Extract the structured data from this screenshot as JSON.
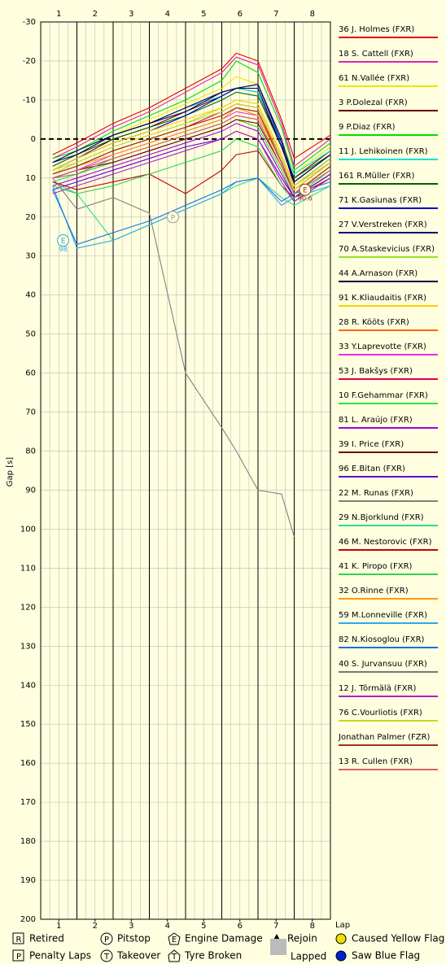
{
  "chart_data": {
    "type": "line",
    "y_label": "Gap [s]",
    "x_label": "Lap",
    "background": "#ffffe0",
    "xlim": [
      0,
      8
    ],
    "xticks": [
      {
        "value": 0.5,
        "label": "1"
      },
      {
        "value": 1.5,
        "label": "2"
      },
      {
        "value": 2.5,
        "label": "3"
      },
      {
        "value": 3.5,
        "label": "4"
      },
      {
        "value": 4.5,
        "label": "5"
      },
      {
        "value": 5.5,
        "label": "6"
      },
      {
        "value": 6.5,
        "label": "7"
      },
      {
        "value": 7.5,
        "label": "8"
      }
    ],
    "ylim": [
      -30,
      200
    ],
    "y_inverted": true,
    "yticks": [
      -30,
      -20,
      -10,
      0,
      10,
      20,
      30,
      40,
      50,
      60,
      70,
      80,
      90,
      100,
      110,
      120,
      130,
      140,
      150,
      160,
      170,
      180,
      190,
      200
    ],
    "grid": true,
    "x": [
      0.33,
      1,
      2,
      3,
      4,
      5,
      5.4,
      6,
      6.65,
      7,
      8
    ],
    "series": [
      {
        "name": "36 J. Holmes (FXR)",
        "color": "#e00000",
        "values": [
          4,
          1,
          -4,
          -8,
          -13,
          -18,
          -22,
          -20,
          -5,
          5,
          -1
        ]
      },
      {
        "name": "18 S. Cattell (FXR)",
        "color": "#e020b0",
        "values": [
          5,
          2,
          -3,
          -7,
          -12,
          -17,
          -21,
          -19,
          -4,
          7,
          0
        ]
      },
      {
        "name": "61 N.Vallée (FXR)",
        "color": "#e8e800",
        "values": [
          7,
          4,
          -1,
          -5,
          -9,
          -13,
          -16,
          -14,
          0,
          9,
          2
        ]
      },
      {
        "name": "3 P.Dolezal (FXR)",
        "color": "#600000",
        "values": [
          8,
          5,
          0,
          -3,
          -7,
          -11,
          -13,
          -12,
          2,
          10,
          3
        ]
      },
      {
        "name": "9 P.Diaz (FXR)",
        "color": "#00dd00",
        "values": [
          5,
          3,
          -2,
          -6,
          -10,
          -15,
          -20,
          -17,
          -3,
          8,
          1
        ]
      },
      {
        "name": "11 J. Lehikoinen (FXR)",
        "color": "#00e0e0",
        "values": [
          6,
          4,
          -1,
          -4,
          -8,
          -11,
          -13,
          -12,
          1,
          9,
          3
        ]
      },
      {
        "name": "161 R.Müller (FXR)",
        "color": "#006000",
        "values": [
          7,
          4,
          0,
          -3,
          -6,
          -10,
          -12,
          -11,
          2,
          10,
          4
        ]
      },
      {
        "name": "71 K.Gasiunas (FXR)",
        "color": "#0000cc",
        "values": [
          8,
          5,
          1,
          -2,
          -6,
          -11,
          -13,
          -14,
          1,
          12,
          5
        ]
      },
      {
        "name": "27 V.Verstreken (FXR)",
        "color": "#000070",
        "values": [
          6,
          4,
          -1,
          -4,
          -7,
          -12,
          -13,
          -14,
          0,
          11,
          4
        ]
      },
      {
        "name": "70 A.Staskevicius (FXR)",
        "color": "#99e030",
        "values": [
          9,
          6,
          2,
          -1,
          -4,
          -8,
          -10,
          -9,
          4,
          12,
          5
        ]
      },
      {
        "name": "44 A.Arnason (FXR)",
        "color": "#000040",
        "values": [
          6,
          3,
          -1,
          -4,
          -8,
          -12,
          -13,
          -13,
          2,
          11,
          4
        ]
      },
      {
        "name": "91 K.Kliaudaitis (FXR)",
        "color": "#ffcc00",
        "values": [
          8,
          5,
          1,
          -2,
          -5,
          -8,
          -10,
          -9,
          4,
          12,
          6
        ]
      },
      {
        "name": "28 R. Kööts (FXR)",
        "color": "#ff6600",
        "values": [
          9,
          7,
          3,
          0,
          -3,
          -6,
          -8,
          -7,
          5,
          13,
          6
        ]
      },
      {
        "name": "33 Y.Laprevotte (FXR)",
        "color": "#e030e0",
        "values": [
          10,
          8,
          4,
          1,
          -2,
          -5,
          -7,
          -6,
          6,
          14,
          7
        ]
      },
      {
        "name": "53 J. Bakšys (FXR)",
        "color": "#e00050",
        "values": [
          9,
          7,
          3,
          0,
          -3,
          -7,
          -9,
          -8,
          5,
          13,
          6
        ]
      },
      {
        "name": "10 F.Gehammar (FXR)",
        "color": "#30e030",
        "values": [
          11,
          9,
          6,
          3,
          0,
          -3,
          -5,
          -3,
          8,
          15,
          8
        ]
      },
      {
        "name": "81 L. Araújo (FXR)",
        "color": "#a000e0",
        "values": [
          12,
          10,
          7,
          4,
          1,
          -2,
          -4,
          -2,
          9,
          15,
          9
        ]
      },
      {
        "name": "39 I. Price (FXR)",
        "color": "#700000",
        "values": [
          10,
          8,
          6,
          3,
          0,
          -3,
          -5,
          -4,
          7,
          14,
          7
        ]
      },
      {
        "name": "96 E.Bitan (FXR)",
        "color": "#6000d0",
        "values": [
          13,
          11,
          8,
          5,
          2,
          0,
          -2,
          0,
          10,
          15,
          9
        ]
      },
      {
        "name": "22 M. Runas (FXR)",
        "color": "#808080",
        "values": [
          10,
          18,
          15,
          19,
          60,
          74,
          80,
          90,
          91,
          102,
          null
        ]
      },
      {
        "name": "29 N.Bjorklund (FXR)",
        "color": "#30d890",
        "values": [
          11,
          14,
          26,
          22,
          18,
          14,
          12,
          10,
          15,
          17,
          12
        ]
      },
      {
        "name": "46 M. Nestorovic (FXR)",
        "color": "#c00000",
        "values": [
          11,
          13,
          11,
          9,
          14,
          8,
          4,
          3,
          12,
          15,
          10
        ]
      },
      {
        "name": "41 K. Piropo (FXR)",
        "color": "#30d050",
        "values": [
          12,
          14,
          12,
          9,
          6,
          3,
          0,
          2,
          12,
          16,
          10
        ]
      },
      {
        "name": "32 O.Rinne (FXR)",
        "color": "#ff9900",
        "values": [
          9,
          7,
          4,
          1,
          -2,
          -5,
          -8,
          -6,
          6,
          14,
          7
        ]
      },
      {
        "name": "59 M.Lonneville (FXR)",
        "color": "#30a8e8",
        "values": [
          12,
          28,
          26,
          22,
          18,
          14,
          11,
          10,
          17,
          15,
          12
        ]
      },
      {
        "name": "82 N.Kiosoglou (FXR)",
        "color": "#1070e0",
        "values": [
          13,
          27,
          24,
          21,
          17,
          13,
          11,
          10,
          16,
          14,
          11
        ]
      },
      {
        "name": "40 S. Jurvansuu (FXR)",
        "color": "#777777",
        "values": [
          10,
          9,
          5,
          2,
          -1,
          -4,
          -6,
          -5,
          7,
          14,
          8
        ]
      },
      {
        "name": "12 J. Törmälä (FXR)",
        "color": "#b020c0",
        "values": [
          14,
          12,
          9,
          6,
          3,
          0,
          -2,
          0,
          11,
          16,
          10
        ]
      },
      {
        "name": "76 C.Vourliotis (FXR)",
        "color": "#c8d820",
        "values": [
          8,
          6,
          2,
          -1,
          -4,
          -7,
          -9,
          -8,
          5,
          13,
          6
        ]
      },
      {
        "name": "Jonathan Palmer (FZR)",
        "color": "#a03020",
        "values": [
          9,
          7,
          3,
          0,
          -3,
          -6,
          -8,
          -7,
          6,
          14,
          7
        ]
      },
      {
        "name": "13 R. Cullen (FXR)",
        "color": "#d86060",
        "values": [
          10,
          8,
          5,
          2,
          -1,
          -4,
          -6,
          -5,
          7,
          14,
          8
        ]
      }
    ],
    "events": [
      {
        "symbol": "P",
        "x": 3.65,
        "y": 20,
        "color": "#999999"
      },
      {
        "symbol": "E",
        "x": 0.62,
        "y": 26,
        "label": "98",
        "color": "#30a8e8"
      },
      {
        "symbol": "E",
        "x": 7.3,
        "y": 13,
        "label": "90.6",
        "color": "#a03020"
      }
    ],
    "event_legend": [
      {
        "symbol": "R",
        "label": "Retired",
        "shape": "square"
      },
      {
        "symbol": "P",
        "label": "Penalty Laps",
        "shape": "square"
      },
      {
        "symbol": "P",
        "label": "Pitstop",
        "shape": "circle"
      },
      {
        "symbol": "T",
        "label": "Takeover",
        "shape": "circle"
      },
      {
        "symbol": "E",
        "label": "Engine Damage",
        "shape": "pentagon"
      },
      {
        "symbol": "T",
        "label": "Tyre Broken",
        "shape": "house"
      },
      {
        "label": "Rejoin",
        "shape": "triangle",
        "color": "#000000"
      },
      {
        "label": "Lapped",
        "shape": "block",
        "color": "#bbbbbb"
      },
      {
        "label": "Caused Yellow Flag",
        "shape": "dot",
        "color": "#f0e000"
      },
      {
        "label": "Saw Blue Flag",
        "shape": "dot",
        "color": "#0020d0"
      }
    ]
  }
}
